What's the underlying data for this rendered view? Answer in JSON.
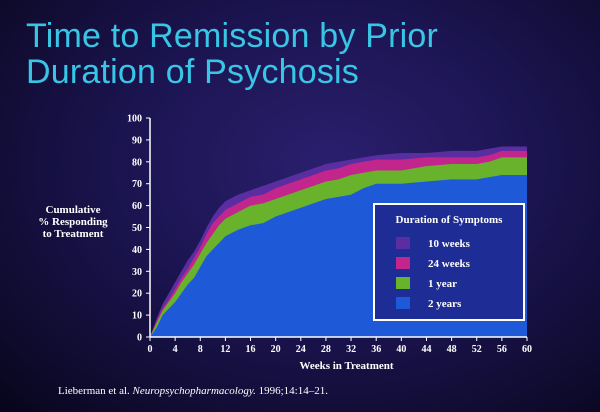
{
  "title": [
    "Time to Remission by Prior",
    "Duration of Psychosis"
  ],
  "ylabel_lines": [
    "Cumulative",
    "% Responding",
    "to Treatment"
  ],
  "citation": {
    "authors": "Lieberman et al.",
    "journal": "Neuropsychopharmacology.",
    "rest": "1996;14:14–21."
  },
  "colors": {
    "10 weeks": "#5a2ea0",
    "24 weeks": "#c2268c",
    "1 year": "#69b32c",
    "2 years": "#1e5ad8"
  },
  "chart_data": {
    "type": "area",
    "title": "Time to Remission by Prior Duration of Psychosis",
    "xlabel": "Weeks in Treatment",
    "ylabel": "Cumulative % Responding to Treatment",
    "xlim": [
      0,
      60
    ],
    "ylim": [
      0,
      100
    ],
    "xticks": [
      0,
      4,
      8,
      12,
      16,
      20,
      24,
      28,
      32,
      36,
      40,
      44,
      48,
      52,
      56,
      60
    ],
    "yticks": [
      0,
      10,
      20,
      30,
      40,
      50,
      60,
      70,
      80,
      90,
      100
    ],
    "grid": false,
    "legend": {
      "title": "Duration of Symptoms",
      "placement": "center-right"
    },
    "x": [
      0,
      1,
      2,
      3,
      4,
      5,
      6,
      7,
      8,
      9,
      10,
      11,
      12,
      14,
      16,
      18,
      20,
      22,
      24,
      26,
      28,
      30,
      32,
      34,
      36,
      40,
      44,
      48,
      52,
      54,
      56,
      60
    ],
    "series": [
      {
        "name": "2 years",
        "values": [
          0,
          4,
          10,
          13,
          16,
          20,
          24,
          27,
          32,
          37,
          40,
          43,
          46,
          49,
          51,
          52,
          55,
          57,
          59,
          61,
          63,
          64,
          65,
          68,
          70,
          70,
          71,
          72,
          72,
          73,
          74,
          74
        ]
      },
      {
        "name": "1 year",
        "values": [
          0,
          6,
          12,
          16,
          20,
          25,
          29,
          33,
          38,
          43,
          47,
          51,
          54,
          57,
          60,
          61,
          63,
          65,
          67,
          69,
          71,
          72,
          74,
          75,
          76,
          76,
          78,
          79,
          79,
          80,
          82,
          82
        ]
      },
      {
        "name": "24 weeks",
        "values": [
          0,
          7,
          13,
          17,
          22,
          27,
          31,
          36,
          41,
          47,
          52,
          55,
          58,
          61,
          64,
          65,
          68,
          70,
          72,
          74,
          76,
          77,
          79,
          80,
          81,
          81,
          82,
          82,
          82,
          83,
          85,
          85
        ]
      },
      {
        "name": "10 weeks",
        "values": [
          0,
          8,
          15,
          20,
          25,
          30,
          35,
          39,
          44,
          50,
          55,
          59,
          62,
          65,
          67,
          69,
          71,
          73,
          75,
          77,
          79,
          80,
          81,
          82,
          83,
          84,
          84,
          85,
          85,
          86,
          87,
          87
        ]
      }
    ]
  }
}
